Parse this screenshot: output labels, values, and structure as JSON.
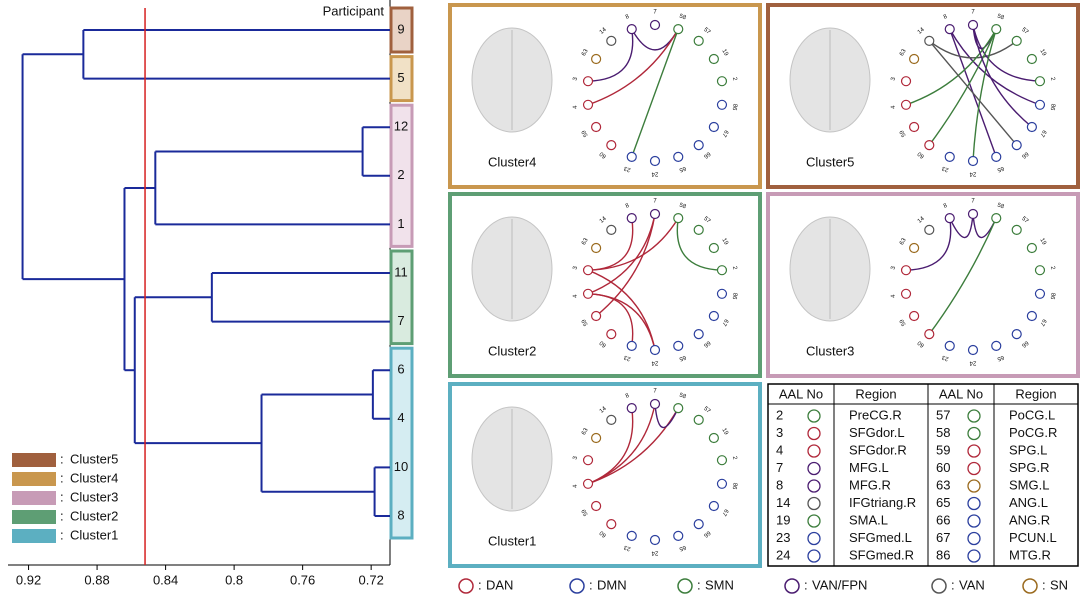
{
  "chart_data": {
    "type": "dendrogram",
    "axis_title": "Participant",
    "leaves": [
      "9",
      "5",
      "12",
      "2",
      "1",
      "11",
      "7",
      "6",
      "4",
      "10",
      "8"
    ],
    "leaf_clusters": [
      "Cluster5",
      "Cluster4",
      "Cluster3",
      "Cluster3",
      "Cluster3",
      "Cluster2",
      "Cluster2",
      "Cluster1",
      "Cluster1",
      "Cluster1",
      "Cluster1"
    ],
    "merges": [
      {
        "children": [
          0,
          1
        ],
        "height": 0.888
      },
      {
        "children": [
          2,
          3
        ],
        "height": 0.725
      },
      {
        "children": [
          12,
          4
        ],
        "height": 0.846
      },
      {
        "children": [
          5,
          6
        ],
        "height": 0.813
      },
      {
        "children": [
          7,
          8
        ],
        "height": 0.719
      },
      {
        "children": [
          9,
          10
        ],
        "height": 0.718
      },
      {
        "children": [
          15,
          16
        ],
        "height": 0.784
      },
      {
        "children": [
          14,
          17
        ],
        "height": 0.858
      },
      {
        "children": [
          13,
          18
        ],
        "height": 0.864
      },
      {
        "children": [
          11,
          19
        ],
        "height": 0.9235
      }
    ],
    "cutoff": 0.852,
    "line_color": "#1a2a9a",
    "cutoff_color": "#d62020",
    "xlim": [
      0.932,
      0.709
    ],
    "xticks": [
      0.92,
      0.88,
      0.84,
      0.8,
      0.76,
      0.72
    ],
    "clusters": [
      {
        "name": "Cluster5",
        "color": "#a0603e",
        "fill": "#e9d3c6"
      },
      {
        "name": "Cluster4",
        "color": "#c9974e",
        "fill": "#f1e1c6"
      },
      {
        "name": "Cluster3",
        "color": "#c79bb6",
        "fill": "#f1e2eb"
      },
      {
        "name": "Cluster2",
        "color": "#5e9e74",
        "fill": "#d9ebdf"
      },
      {
        "name": "Cluster1",
        "color": "#5cafc1",
        "fill": "#d5edf2"
      }
    ],
    "legend_prefix": ":"
  },
  "networks": [
    {
      "name": "DAN",
      "color": "#b0283a"
    },
    {
      "name": "DMN",
      "color": "#2b3f9e"
    },
    {
      "name": "SMN",
      "color": "#3c7d3c"
    },
    {
      "name": "VAN/FPN",
      "color": "#4a1c70"
    },
    {
      "name": "VAN",
      "color": "#555555"
    },
    {
      "name": "SN",
      "color": "#9a6a1e"
    }
  ],
  "ring_nodes": [
    {
      "label": "7",
      "network": 3
    },
    {
      "label": "58",
      "network": 2
    },
    {
      "label": "57",
      "network": 2
    },
    {
      "label": "19",
      "network": 2
    },
    {
      "label": "2",
      "network": 2
    },
    {
      "label": "86",
      "network": 1
    },
    {
      "label": "67",
      "network": 1
    },
    {
      "label": "66",
      "network": 1
    },
    {
      "label": "65",
      "network": 1
    },
    {
      "label": "24",
      "network": 1
    },
    {
      "label": "23",
      "network": 1
    },
    {
      "label": "60",
      "network": 0
    },
    {
      "label": "59",
      "network": 0
    },
    {
      "label": "4",
      "network": 0
    },
    {
      "label": "3",
      "network": 0
    },
    {
      "label": "63",
      "network": 5
    },
    {
      "label": "14",
      "network": 4
    },
    {
      "label": "8",
      "network": 3
    }
  ],
  "panels": [
    {
      "label": "Cluster4",
      "cluster": 1,
      "edges": [
        [
          17,
          14
        ],
        [
          17,
          1
        ],
        [
          13,
          1
        ],
        [
          1,
          10
        ]
      ]
    },
    {
      "label": "Cluster5",
      "cluster": 0,
      "edges": [
        [
          0,
          1
        ],
        [
          17,
          5
        ],
        [
          17,
          8
        ],
        [
          16,
          2
        ],
        [
          0,
          4
        ],
        [
          1,
          13
        ],
        [
          1,
          11
        ],
        [
          1,
          9
        ],
        [
          0,
          6
        ],
        [
          16,
          7
        ]
      ]
    },
    {
      "label": "Cluster2",
      "cluster": 3,
      "edges": [
        [
          14,
          17
        ],
        [
          14,
          1
        ],
        [
          13,
          0
        ],
        [
          13,
          9
        ],
        [
          12,
          0
        ],
        [
          14,
          9
        ],
        [
          1,
          4
        ],
        [
          13,
          10
        ]
      ]
    },
    {
      "label": "Cluster3",
      "cluster": 2,
      "edges": [
        [
          17,
          0
        ],
        [
          0,
          1
        ],
        [
          17,
          14
        ],
        [
          1,
          11
        ]
      ]
    },
    {
      "label": "Cluster1",
      "cluster": 4,
      "edges": [
        [
          13,
          0
        ],
        [
          13,
          17
        ],
        [
          13,
          1
        ],
        [
          0,
          1
        ]
      ]
    }
  ],
  "table": {
    "header": [
      "AAL No",
      "Region",
      "AAL No",
      "Region"
    ],
    "rows": [
      [
        {
          "no": "2",
          "node": 4
        },
        "PreCG.R",
        {
          "no": "57",
          "node": 2
        },
        "PoCG.L"
      ],
      [
        {
          "no": "3",
          "node": 14
        },
        "SFGdor.L",
        {
          "no": "58",
          "node": 1
        },
        "PoCG.R"
      ],
      [
        {
          "no": "4",
          "node": 13
        },
        "SFGdor.R",
        {
          "no": "59",
          "node": 12
        },
        "SPG.L"
      ],
      [
        {
          "no": "7",
          "node": 0
        },
        "MFG.L",
        {
          "no": "60",
          "node": 11
        },
        "SPG.R"
      ],
      [
        {
          "no": "8",
          "node": 17
        },
        "MFG.R",
        {
          "no": "63",
          "node": 15
        },
        "SMG.L"
      ],
      [
        {
          "no": "14",
          "node": 16
        },
        "IFGtriang.R",
        {
          "no": "65",
          "node": 8
        },
        "ANG.L"
      ],
      [
        {
          "no": "19",
          "node": 3
        },
        "SMA.L",
        {
          "no": "66",
          "node": 7
        },
        "ANG.R"
      ],
      [
        {
          "no": "23",
          "node": 10
        },
        "SFGmed.L",
        {
          "no": "67",
          "node": 6
        },
        "PCUN.L"
      ],
      [
        {
          "no": "24",
          "node": 9
        },
        "SFGmed.R",
        {
          "no": "86",
          "node": 5
        },
        "MTG.R"
      ]
    ]
  }
}
